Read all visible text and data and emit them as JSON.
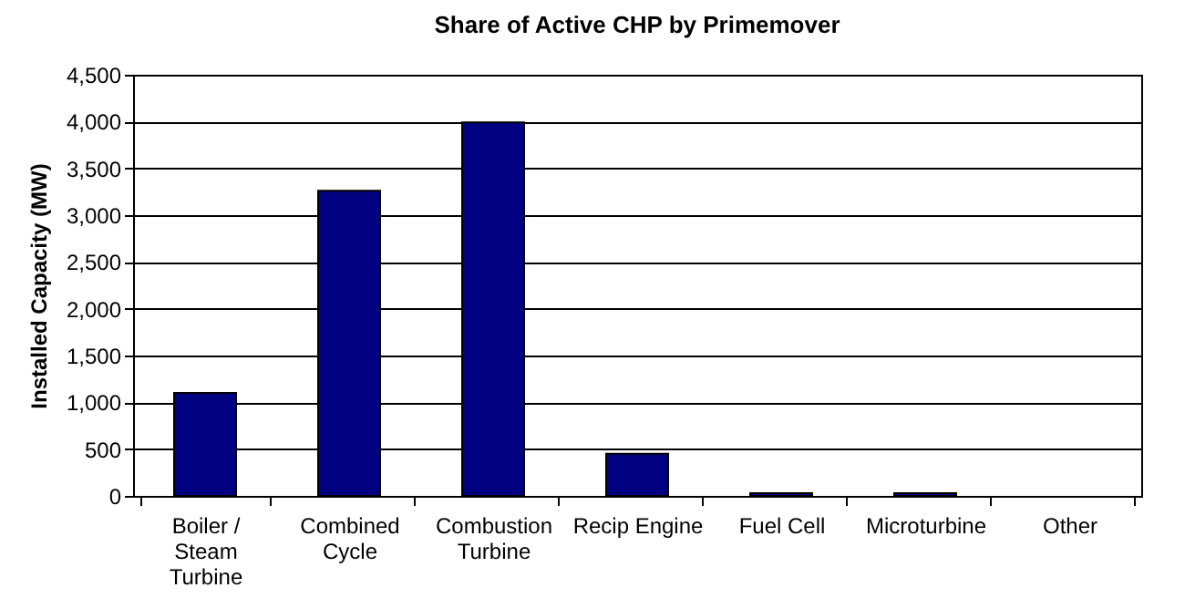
{
  "chart_data": {
    "type": "bar",
    "title": "Share of Active CHP by Primemover",
    "ylabel": "Installed Capacity (MW)",
    "categories": [
      "Boiler / Steam Turbine",
      "Combined Cycle",
      "Combustion Turbine",
      "Recip Engine",
      "Fuel Cell",
      "Microturbine",
      "Other"
    ],
    "values": [
      1100,
      3260,
      3990,
      450,
      30,
      30,
      null
    ],
    "color": "#000080",
    "ylim": [
      0,
      4500
    ],
    "yticks": [
      {
        "value": 0,
        "label": "0"
      },
      {
        "value": 500,
        "label": "500"
      },
      {
        "value": 1000,
        "label": "1,000"
      },
      {
        "value": 1500,
        "label": "1,500"
      },
      {
        "value": 2000,
        "label": "2,000"
      },
      {
        "value": 2500,
        "label": "2,500"
      },
      {
        "value": 3000,
        "label": "3,000"
      },
      {
        "value": 3500,
        "label": "3,500"
      },
      {
        "value": 4000,
        "label": "4,000"
      },
      {
        "value": 4500,
        "label": "4,500"
      }
    ],
    "grid": "y"
  }
}
